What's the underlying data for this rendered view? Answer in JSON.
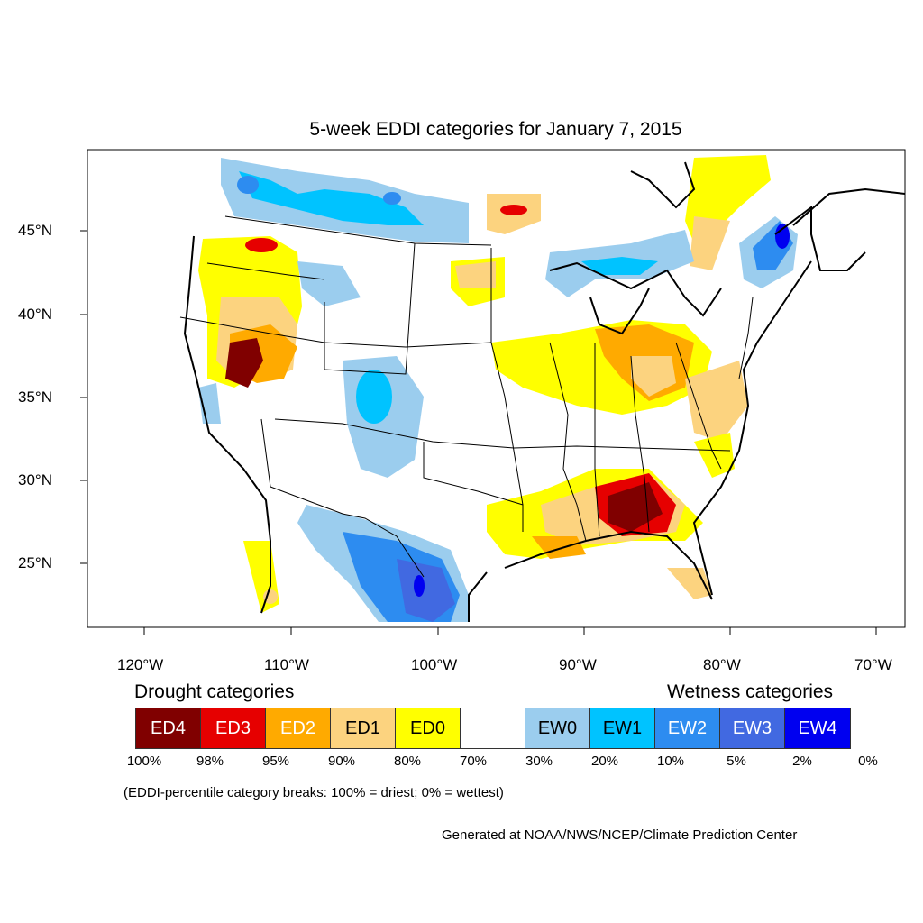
{
  "title": "5-week EDDI categories for January 7, 2015",
  "lat_labels": [
    "45°N",
    "40°N",
    "35°N",
    "30°N",
    "25°N"
  ],
  "lon_labels": [
    "120°W",
    "110°W",
    "100°W",
    "90°W",
    "80°W",
    "70°W"
  ],
  "legend": {
    "drought_heading": "Drought categories",
    "wetness_heading": "Wetness categories",
    "categories": [
      {
        "label": "ED4",
        "color": "#800000",
        "text_color": "#ffffff"
      },
      {
        "label": "ED3",
        "color": "#e60000",
        "text_color": "#ffffff"
      },
      {
        "label": "ED2",
        "color": "#ffaa00",
        "text_color": "#ffffff"
      },
      {
        "label": "ED1",
        "color": "#fcd37f",
        "text_color": "#000000"
      },
      {
        "label": "ED0",
        "color": "#ffff00",
        "text_color": "#000000"
      },
      {
        "label": "",
        "color": "#ffffff",
        "text_color": "#000000"
      },
      {
        "label": "EW0",
        "color": "#9bcdee",
        "text_color": "#000000"
      },
      {
        "label": "EW1",
        "color": "#00c3ff",
        "text_color": "#000000"
      },
      {
        "label": "EW2",
        "color": "#2d8cf0",
        "text_color": "#ffffff"
      },
      {
        "label": "EW3",
        "color": "#4169e1",
        "text_color": "#ffffff"
      },
      {
        "label": "EW4",
        "color": "#0000f0",
        "text_color": "#ffffff"
      }
    ],
    "breaks": [
      "100%",
      "98%",
      "95%",
      "90%",
      "80%",
      "70%",
      "30%",
      "20%",
      "10%",
      "5%",
      "2%",
      "0%"
    ],
    "note": "(EDDI-percentile category breaks: 100% = driest; 0% = wettest)"
  },
  "credit": "Generated at NOAA/NWS/NCEP/Climate Prediction Center"
}
